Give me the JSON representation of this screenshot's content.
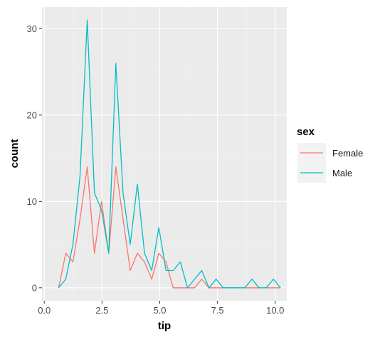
{
  "chart_data": {
    "type": "line",
    "title": "",
    "xlabel": "tip",
    "ylabel": "count",
    "xlim": [
      -0.1,
      10.5
    ],
    "ylim": [
      -1.5,
      32.5
    ],
    "x_ticks": [
      0.0,
      2.5,
      5.0,
      7.5,
      10.0
    ],
    "x_tick_labels": [
      "0.0",
      "2.5",
      "5.0",
      "7.5",
      "10.0"
    ],
    "y_ticks": [
      0,
      10,
      20,
      30
    ],
    "y_tick_labels": [
      "0",
      "10",
      "20",
      "30"
    ],
    "grid": true,
    "legend": {
      "title": "sex",
      "placement": "right"
    },
    "series": [
      {
        "name": "Female",
        "color": "#F8766D",
        "x": [
          0.62,
          0.93,
          1.24,
          1.55,
          1.86,
          2.17,
          2.48,
          2.79,
          3.1,
          3.41,
          3.72,
          4.03,
          4.34,
          4.65,
          4.96,
          5.27,
          5.58,
          5.89,
          6.2,
          6.51,
          6.82,
          7.13,
          7.44,
          7.75,
          8.06,
          8.37,
          8.68,
          8.99,
          9.3,
          9.61,
          9.92,
          10.23
        ],
        "values": [
          0,
          4,
          3,
          8,
          14,
          4,
          10,
          4,
          14,
          8,
          2,
          4,
          3,
          1,
          4,
          3,
          0,
          0,
          0,
          0,
          1,
          0,
          0,
          0,
          0,
          0,
          0,
          0,
          0,
          0,
          0,
          0
        ]
      },
      {
        "name": "Male",
        "color": "#00BFC4",
        "x": [
          0.62,
          0.93,
          1.24,
          1.55,
          1.86,
          2.17,
          2.48,
          2.79,
          3.1,
          3.41,
          3.72,
          4.03,
          4.34,
          4.65,
          4.96,
          5.27,
          5.58,
          5.89,
          6.2,
          6.51,
          6.82,
          7.13,
          7.44,
          7.75,
          8.06,
          8.37,
          8.68,
          8.99,
          9.3,
          9.61,
          9.92,
          10.23
        ],
        "values": [
          0,
          1,
          5,
          13,
          31,
          11,
          9,
          4,
          26,
          11,
          5,
          12,
          4,
          2,
          7,
          2,
          2,
          3,
          0,
          1,
          2,
          0,
          1,
          0,
          0,
          0,
          0,
          1,
          0,
          0,
          1,
          0
        ]
      }
    ]
  }
}
